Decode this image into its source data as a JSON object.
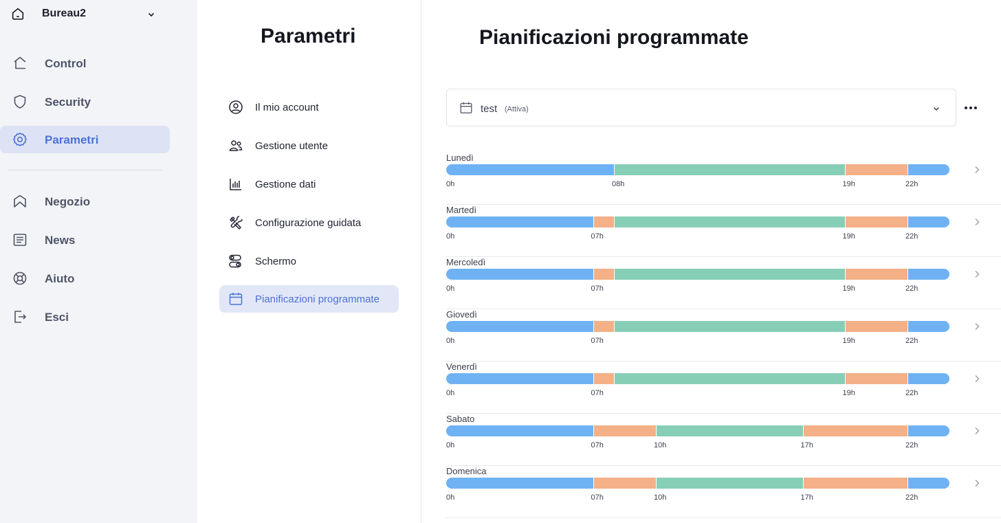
{
  "home": {
    "name": "Bureau2",
    "icon": "home-icon",
    "dropdown_icon": "chevron-down-icon"
  },
  "nav": [
    {
      "label": "Control",
      "icon": "home-outline-icon",
      "active": false
    },
    {
      "label": "Security",
      "icon": "shield-icon",
      "active": false
    },
    {
      "label": "Parametri",
      "icon": "gear-icon",
      "active": true
    },
    {
      "label": "Negozio",
      "icon": "shop-icon",
      "active": false
    },
    {
      "label": "News",
      "icon": "news-icon",
      "active": false
    },
    {
      "label": "Aiuto",
      "icon": "lifebuoy-icon",
      "active": false
    },
    {
      "label": "Esci",
      "icon": "logout-icon",
      "active": false
    }
  ],
  "settings": {
    "title": "Parametri",
    "items": [
      {
        "label": "Il mio account",
        "icon": "user-circle-icon",
        "active": false
      },
      {
        "label": "Gestione utente",
        "icon": "users-icon",
        "active": false
      },
      {
        "label": "Gestione dati",
        "icon": "bar-chart-icon",
        "active": false
      },
      {
        "label": "Configurazione guidata",
        "icon": "tools-icon",
        "active": false
      },
      {
        "label": "Schermo",
        "icon": "toggles-icon",
        "active": false
      },
      {
        "label": "Pianificazioni programmate",
        "icon": "calendar-icon",
        "active": true
      }
    ]
  },
  "main": {
    "title": "Pianificazioni programmate",
    "schedule": {
      "name": "test",
      "status": "(Attiva)"
    },
    "colors": {
      "blue": "#6fb2f3",
      "green": "#86cfb6",
      "orange": "#f4b086"
    },
    "days": [
      {
        "name": "Lunedì",
        "segments": [
          {
            "from": 0,
            "to": 8,
            "color": "blue"
          },
          {
            "from": 8,
            "to": 19,
            "color": "green"
          },
          {
            "from": 19,
            "to": 22,
            "color": "orange"
          },
          {
            "from": 22,
            "to": 24,
            "color": "blue"
          }
        ],
        "ticks": [
          {
            "hour": 0,
            "label": "0h"
          },
          {
            "hour": 8,
            "label": "08h"
          },
          {
            "hour": 19,
            "label": "19h"
          },
          {
            "hour": 22,
            "label": "22h"
          }
        ]
      },
      {
        "name": "Martedì",
        "segments": [
          {
            "from": 0,
            "to": 7,
            "color": "blue"
          },
          {
            "from": 7,
            "to": 8,
            "color": "orange"
          },
          {
            "from": 8,
            "to": 19,
            "color": "green"
          },
          {
            "from": 19,
            "to": 22,
            "color": "orange"
          },
          {
            "from": 22,
            "to": 24,
            "color": "blue"
          }
        ],
        "ticks": [
          {
            "hour": 0,
            "label": "0h"
          },
          {
            "hour": 7,
            "label": "07h"
          },
          {
            "hour": 19,
            "label": "19h"
          },
          {
            "hour": 22,
            "label": "22h"
          }
        ]
      },
      {
        "name": "Mercoledì",
        "segments": [
          {
            "from": 0,
            "to": 7,
            "color": "blue"
          },
          {
            "from": 7,
            "to": 8,
            "color": "orange"
          },
          {
            "from": 8,
            "to": 19,
            "color": "green"
          },
          {
            "from": 19,
            "to": 22,
            "color": "orange"
          },
          {
            "from": 22,
            "to": 24,
            "color": "blue"
          }
        ],
        "ticks": [
          {
            "hour": 0,
            "label": "0h"
          },
          {
            "hour": 7,
            "label": "07h"
          },
          {
            "hour": 19,
            "label": "19h"
          },
          {
            "hour": 22,
            "label": "22h"
          }
        ]
      },
      {
        "name": "Giovedì",
        "segments": [
          {
            "from": 0,
            "to": 7,
            "color": "blue"
          },
          {
            "from": 7,
            "to": 8,
            "color": "orange"
          },
          {
            "from": 8,
            "to": 19,
            "color": "green"
          },
          {
            "from": 19,
            "to": 22,
            "color": "orange"
          },
          {
            "from": 22,
            "to": 24,
            "color": "blue"
          }
        ],
        "ticks": [
          {
            "hour": 0,
            "label": "0h"
          },
          {
            "hour": 7,
            "label": "07h"
          },
          {
            "hour": 19,
            "label": "19h"
          },
          {
            "hour": 22,
            "label": "22h"
          }
        ]
      },
      {
        "name": "Venerdì",
        "segments": [
          {
            "from": 0,
            "to": 7,
            "color": "blue"
          },
          {
            "from": 7,
            "to": 8,
            "color": "orange"
          },
          {
            "from": 8,
            "to": 19,
            "color": "green"
          },
          {
            "from": 19,
            "to": 22,
            "color": "orange"
          },
          {
            "from": 22,
            "to": 24,
            "color": "blue"
          }
        ],
        "ticks": [
          {
            "hour": 0,
            "label": "0h"
          },
          {
            "hour": 7,
            "label": "07h"
          },
          {
            "hour": 19,
            "label": "19h"
          },
          {
            "hour": 22,
            "label": "22h"
          }
        ]
      },
      {
        "name": "Sabato",
        "segments": [
          {
            "from": 0,
            "to": 7,
            "color": "blue"
          },
          {
            "from": 7,
            "to": 10,
            "color": "orange"
          },
          {
            "from": 10,
            "to": 17,
            "color": "green"
          },
          {
            "from": 17,
            "to": 22,
            "color": "orange"
          },
          {
            "from": 22,
            "to": 24,
            "color": "blue"
          }
        ],
        "ticks": [
          {
            "hour": 0,
            "label": "0h"
          },
          {
            "hour": 7,
            "label": "07h"
          },
          {
            "hour": 10,
            "label": "10h"
          },
          {
            "hour": 17,
            "label": "17h"
          },
          {
            "hour": 22,
            "label": "22h"
          }
        ]
      },
      {
        "name": "Domenica",
        "segments": [
          {
            "from": 0,
            "to": 7,
            "color": "blue"
          },
          {
            "from": 7,
            "to": 10,
            "color": "orange"
          },
          {
            "from": 10,
            "to": 17,
            "color": "green"
          },
          {
            "from": 17,
            "to": 22,
            "color": "orange"
          },
          {
            "from": 22,
            "to": 24,
            "color": "blue"
          }
        ],
        "ticks": [
          {
            "hour": 0,
            "label": "0h"
          },
          {
            "hour": 7,
            "label": "07h"
          },
          {
            "hour": 10,
            "label": "10h"
          },
          {
            "hour": 17,
            "label": "17h"
          },
          {
            "hour": 22,
            "label": "22h"
          }
        ]
      }
    ]
  }
}
